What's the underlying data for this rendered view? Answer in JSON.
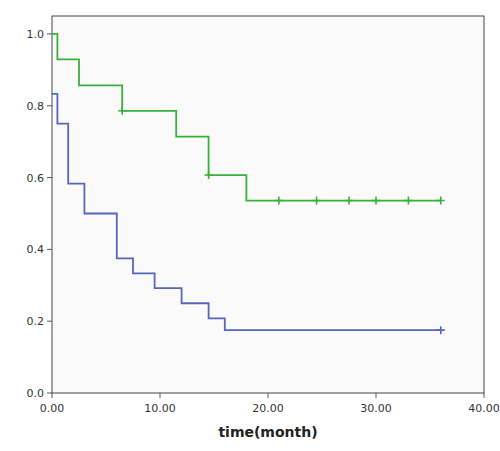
{
  "chart_data": {
    "type": "step",
    "xlabel": "time(month)",
    "xlim": [
      0,
      40
    ],
    "ylim": [
      0.0,
      1.05
    ],
    "xticks": [
      {
        "value": 0,
        "label": "0.00"
      },
      {
        "value": 10,
        "label": "10.00"
      },
      {
        "value": 20,
        "label": "20.00"
      },
      {
        "value": 30,
        "label": "30.00"
      },
      {
        "value": 40,
        "label": "40.00"
      }
    ],
    "yticks": [
      {
        "value": 0,
        "label": "0.0"
      },
      0.2,
      0.4,
      0.6,
      0.8,
      {
        "value": 1,
        "label": "1.0"
      }
    ],
    "grid": false,
    "series": [
      {
        "color": "#3aaf3a",
        "x": [
          0.0,
          0.5,
          2.5,
          6.5,
          11.5,
          14.5,
          18.0,
          36.0
        ],
        "values": [
          1.0,
          0.929,
          0.857,
          0.786,
          0.714,
          0.607,
          0.536,
          0.536
        ],
        "censor_x": [
          6.5,
          14.5,
          21.0,
          24.5,
          27.5,
          30.0,
          33.0,
          36.0
        ],
        "censor_values": [
          0.786,
          0.607,
          0.536,
          0.536,
          0.536,
          0.536,
          0.536,
          0.536
        ]
      },
      {
        "color": "#5566bb",
        "x": [
          0.0,
          0.5,
          1.5,
          3.0,
          6.0,
          7.5,
          9.5,
          12.0,
          14.5,
          16.0,
          18.0,
          19.5,
          36.0
        ],
        "values": [
          0.833,
          0.75,
          0.583,
          0.5,
          0.375,
          0.333,
          0.292,
          0.25,
          0.208,
          0.175,
          0.175,
          0.175,
          0.175
        ],
        "censor_x": [
          36.0
        ],
        "censor_values": [
          0.175
        ]
      }
    ]
  }
}
